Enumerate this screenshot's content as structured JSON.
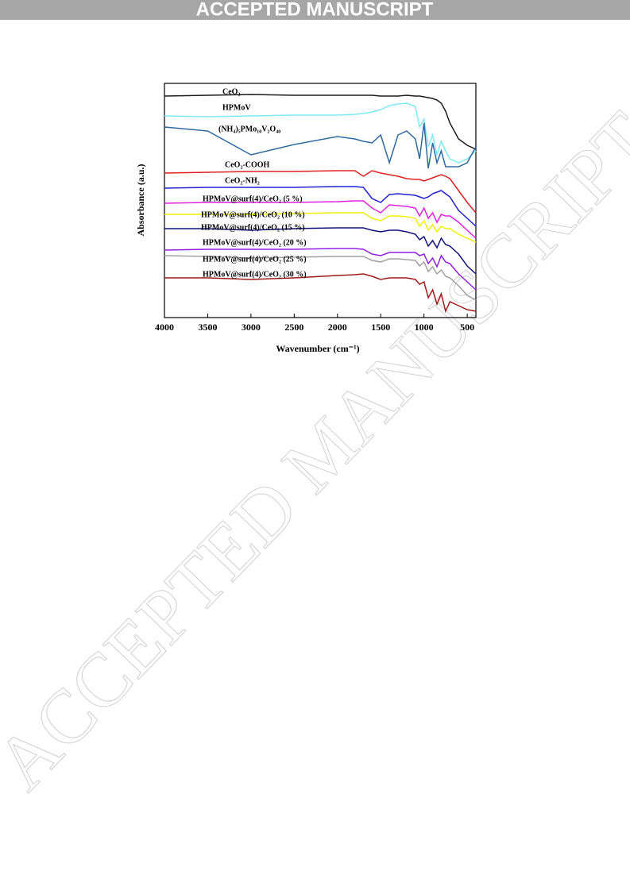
{
  "header": {
    "banner": "ACCEPTED MANUSCRIPT"
  },
  "watermark": "ACCEPTED MANUSCRIPT",
  "chart_data": {
    "type": "line",
    "x_label": "Wavenumber (cm⁻¹)",
    "y_label": "Absorbance (a.u.)",
    "xlim": [
      4000,
      400
    ],
    "ylim": [
      0,
      295
    ],
    "xticks": [
      4000,
      3500,
      3000,
      2500,
      2000,
      1500,
      1000,
      500
    ],
    "x": [
      4000,
      3500,
      3000,
      2500,
      2000,
      1800,
      1700,
      1600,
      1500,
      1400,
      1300,
      1200,
      1100,
      1050,
      1000,
      950,
      900,
      850,
      800,
      750,
      700,
      600,
      500,
      400
    ],
    "series": [
      {
        "name": "CeO₂",
        "color": "#1a1a1a",
        "values": [
          279,
          280,
          281,
          280,
          280,
          280,
          280,
          280,
          279,
          279,
          279,
          280,
          279,
          279,
          278,
          277,
          276,
          274,
          270,
          260,
          245,
          225,
          217,
          212
        ]
      },
      {
        "name": "HPMoV",
        "color": "#7fe8f5",
        "values": [
          254,
          253,
          254,
          255,
          255,
          256,
          257,
          259,
          262,
          267,
          269,
          270,
          266,
          240,
          250,
          215,
          230,
          205,
          222,
          210,
          200,
          195,
          200,
          210
        ]
      },
      {
        "name": "(NH₄)₅PMo₁₀V₂O₄₀",
        "color": "#2e6aa0",
        "values": [
          240,
          235,
          205,
          218,
          228,
          225,
          222,
          220,
          230,
          195,
          230,
          235,
          225,
          200,
          245,
          188,
          220,
          195,
          210,
          190,
          190,
          190,
          195,
          215
        ]
      },
      {
        "name": "CeO₂-COOH",
        "color": "#e02020",
        "values": [
          182,
          183,
          184,
          184,
          185,
          185,
          178,
          185,
          182,
          180,
          178,
          175,
          174,
          174,
          172,
          174,
          176,
          178,
          180,
          178,
          175,
          160,
          145,
          132
        ]
      },
      {
        "name": "CeO₂-NH₂",
        "color": "#2020d0",
        "values": [
          163,
          164,
          164,
          164,
          165,
          165,
          164,
          150,
          145,
          155,
          156,
          155,
          154,
          152,
          150,
          152,
          156,
          158,
          160,
          156,
          152,
          135,
          125,
          115
        ]
      },
      {
        "name": "HPMoV@surf(4)/CeO₂ (5 %)",
        "color": "#e020e0",
        "values": [
          144,
          145,
          145,
          145,
          146,
          147,
          147,
          138,
          132,
          142,
          141,
          140,
          138,
          128,
          138,
          125,
          132,
          120,
          130,
          128,
          128,
          120,
          110,
          100
        ]
      },
      {
        "name": "HPMoV@surf(4)/CeO₂ (10 %)",
        "color": "#f0f000",
        "values": [
          130,
          130,
          130,
          131,
          132,
          132,
          132,
          125,
          122,
          128,
          128,
          127,
          125,
          115,
          122,
          110,
          117,
          108,
          115,
          112,
          112,
          105,
          100,
          95
        ]
      },
      {
        "name": "HPMoV@surf(4)/CeO₂ (15 %)",
        "color": "#10107a",
        "values": [
          112,
          112,
          110,
          112,
          113,
          113,
          113,
          110,
          108,
          110,
          110,
          108,
          105,
          98,
          102,
          90,
          97,
          88,
          100,
          92,
          90,
          80,
          65,
          55
        ]
      },
      {
        "name": "HPMoV@surf(4)/CeO₂ (20 %)",
        "color": "#9020e0",
        "values": [
          85,
          86,
          86,
          86,
          87,
          87,
          86,
          80,
          78,
          82,
          82,
          82,
          82,
          78,
          80,
          68,
          75,
          64,
          78,
          70,
          68,
          55,
          45,
          35
        ]
      },
      {
        "name": "HPMoV@surf(4)/CeO₂ (25 %)",
        "color": "#a0a0a0",
        "values": [
          78,
          77,
          75,
          76,
          77,
          77,
          77,
          72,
          70,
          74,
          74,
          73,
          72,
          65,
          70,
          58,
          64,
          55,
          60,
          52,
          50,
          40,
          28,
          22
        ]
      },
      {
        "name": "HPMoV@surf(4)/CeO₂ (30 %)",
        "color": "#a01a1a",
        "values": [
          50,
          50,
          48,
          50,
          53,
          54,
          55,
          52,
          48,
          50,
          50,
          50,
          48,
          42,
          45,
          25,
          35,
          17,
          30,
          8,
          20,
          15,
          10,
          8
        ]
      }
    ]
  }
}
